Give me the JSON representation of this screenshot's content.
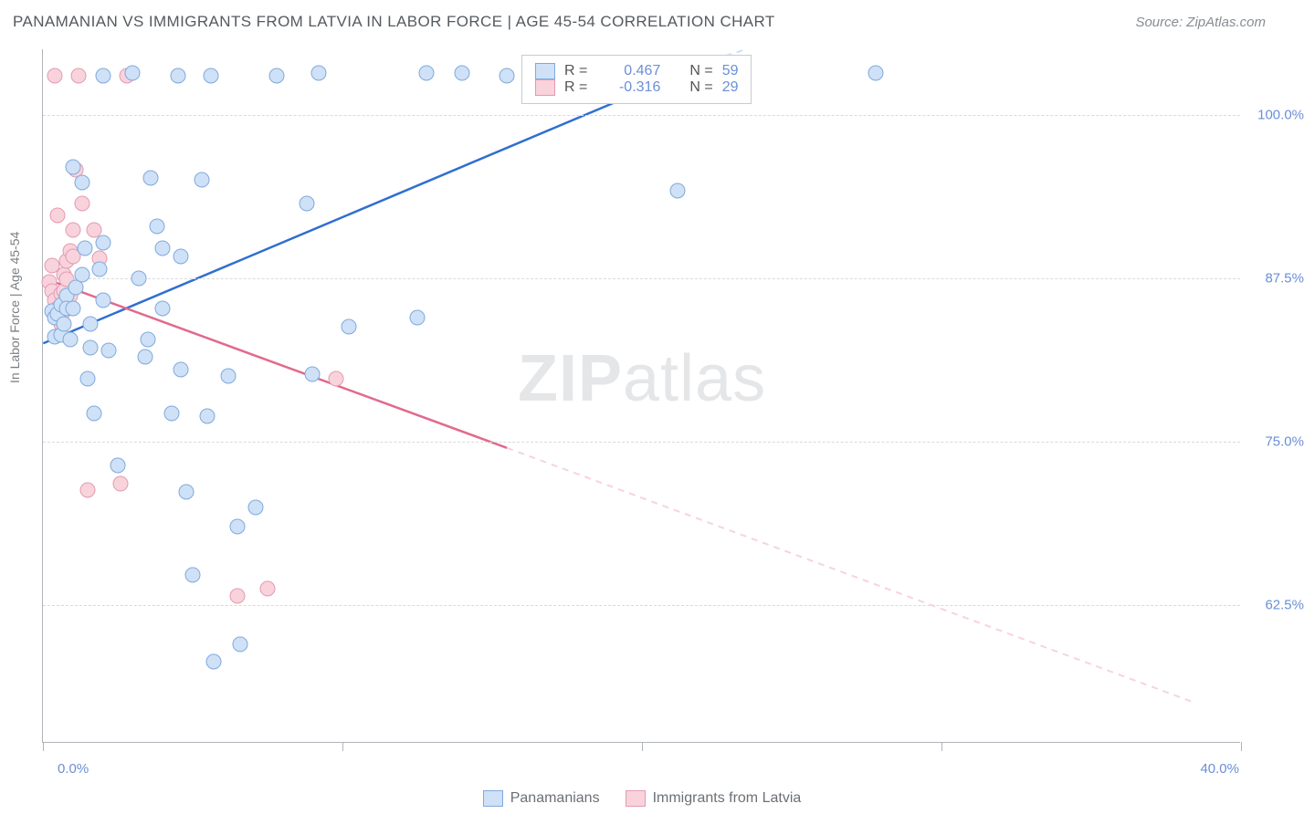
{
  "header": {
    "title": "PANAMANIAN VS IMMIGRANTS FROM LATVIA IN LABOR FORCE | AGE 45-54 CORRELATION CHART",
    "source": "Source: ZipAtlas.com"
  },
  "chart": {
    "type": "scatter",
    "y_axis_label": "In Labor Force | Age 45-54",
    "xlim": [
      0,
      40
    ],
    "ylim": [
      52,
      105
    ],
    "x_ticks": [
      0,
      10,
      20,
      30,
      40
    ],
    "x_tick_labels": {
      "0": "0.0%",
      "40": "40.0%"
    },
    "y_ticks": [
      62.5,
      75.0,
      87.5,
      100.0
    ],
    "y_tick_labels": [
      "62.5%",
      "75.0%",
      "87.5%",
      "100.0%"
    ],
    "grid_color": "#d7dadd",
    "axis_color": "#b0b4b8",
    "background_color": "#ffffff",
    "series": [
      {
        "name": "Panamanians",
        "fill": "#cfe1f6",
        "stroke": "#7fa9dd",
        "line_color": "#2f6fd0",
        "R": "0.467",
        "N": "59",
        "trend": {
          "x1": 0,
          "y1": 82.5,
          "x2": 22.8,
          "y2": 104.5,
          "extrap_x2": 23.5,
          "extrap_y2": 105
        },
        "points": [
          [
            0.3,
            85.0
          ],
          [
            0.4,
            83.0
          ],
          [
            0.4,
            84.5
          ],
          [
            0.5,
            84.8
          ],
          [
            0.6,
            85.5
          ],
          [
            0.6,
            83.2
          ],
          [
            0.7,
            84.0
          ],
          [
            0.8,
            86.2
          ],
          [
            0.8,
            85.2
          ],
          [
            0.9,
            82.8
          ],
          [
            1.0,
            96.0
          ],
          [
            1.0,
            85.2
          ],
          [
            1.1,
            86.8
          ],
          [
            1.3,
            94.8
          ],
          [
            1.3,
            87.8
          ],
          [
            1.4,
            89.8
          ],
          [
            1.5,
            79.8
          ],
          [
            1.6,
            84.0
          ],
          [
            1.6,
            82.2
          ],
          [
            1.7,
            77.2
          ],
          [
            1.9,
            88.2
          ],
          [
            2.0,
            103.0
          ],
          [
            2.0,
            85.8
          ],
          [
            2.0,
            90.2
          ],
          [
            2.2,
            82.0
          ],
          [
            2.5,
            73.2
          ],
          [
            3.0,
            103.2
          ],
          [
            3.2,
            87.5
          ],
          [
            3.4,
            81.5
          ],
          [
            3.5,
            82.8
          ],
          [
            3.6,
            95.2
          ],
          [
            3.8,
            91.5
          ],
          [
            4.0,
            85.2
          ],
          [
            4.0,
            89.8
          ],
          [
            4.3,
            77.2
          ],
          [
            4.5,
            103.0
          ],
          [
            4.6,
            89.2
          ],
          [
            4.6,
            80.5
          ],
          [
            4.8,
            71.2
          ],
          [
            5.0,
            64.8
          ],
          [
            5.3,
            95.0
          ],
          [
            5.5,
            77.0
          ],
          [
            5.6,
            103.0
          ],
          [
            5.7,
            58.2
          ],
          [
            6.2,
            80.0
          ],
          [
            6.5,
            68.5
          ],
          [
            6.6,
            59.5
          ],
          [
            7.1,
            70.0
          ],
          [
            7.8,
            103.0
          ],
          [
            8.8,
            93.2
          ],
          [
            9.2,
            103.2
          ],
          [
            9.0,
            80.2
          ],
          [
            10.2,
            83.8
          ],
          [
            12.8,
            103.2
          ],
          [
            12.5,
            84.5
          ],
          [
            14.0,
            103.2
          ],
          [
            15.5,
            103.0
          ],
          [
            21.2,
            94.2
          ],
          [
            27.8,
            103.2
          ]
        ]
      },
      {
        "name": "Immigrants from Latvia",
        "fill": "#f8d3dc",
        "stroke": "#e59ab0",
        "line_color": "#e16a8c",
        "R": "-0.316",
        "N": "29",
        "trend": {
          "x1": 0,
          "y1": 87.5,
          "x2": 15.5,
          "y2": 74.5,
          "extrap_x2": 38.5,
          "extrap_y2": 55
        },
        "points": [
          [
            0.2,
            87.2
          ],
          [
            0.3,
            88.5
          ],
          [
            0.3,
            86.5
          ],
          [
            0.4,
            103.0
          ],
          [
            0.4,
            85.8
          ],
          [
            0.5,
            92.3
          ],
          [
            0.5,
            85.2
          ],
          [
            0.6,
            84.0
          ],
          [
            0.6,
            86.3
          ],
          [
            0.7,
            87.8
          ],
          [
            0.7,
            86.5
          ],
          [
            0.7,
            85.0
          ],
          [
            0.8,
            88.8
          ],
          [
            0.8,
            87.4
          ],
          [
            0.9,
            89.6
          ],
          [
            0.9,
            86.2
          ],
          [
            1.0,
            91.2
          ],
          [
            1.0,
            89.2
          ],
          [
            1.1,
            95.8
          ],
          [
            1.2,
            103.0
          ],
          [
            1.3,
            93.2
          ],
          [
            1.5,
            71.3
          ],
          [
            1.7,
            91.2
          ],
          [
            1.9,
            89.0
          ],
          [
            2.6,
            71.8
          ],
          [
            2.8,
            103.0
          ],
          [
            6.5,
            63.2
          ],
          [
            7.5,
            63.8
          ],
          [
            9.8,
            79.8
          ]
        ]
      }
    ],
    "stats_legend": {
      "R_label": "R =",
      "N_label": "N ="
    },
    "bottom_legend": [
      {
        "label": "Panamanians",
        "fill": "#cfe1f6",
        "stroke": "#7fa9dd"
      },
      {
        "label": "Immigrants from Latvia",
        "fill": "#f8d3dc",
        "stroke": "#e59ab0"
      }
    ],
    "watermark": {
      "text_bold": "ZIP",
      "text_rest": "atlas",
      "color": "#e4e6e8",
      "fontsize": 72
    }
  }
}
